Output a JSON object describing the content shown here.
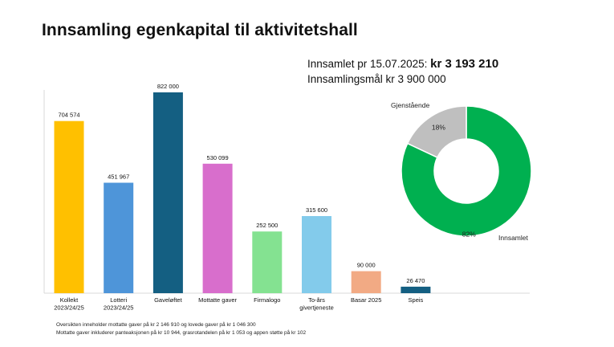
{
  "title": "Innsamling egenkapital til aktivitetshall",
  "summary": {
    "raised_label": "Innsamlet pr 15.07.2025:",
    "raised_amount": "kr 3 193 210",
    "goal_text": "Innsamlingsmål kr 3 900 000"
  },
  "notes": [
    "Oversikten inneholder mottatte gaver på kr 2 146 910 og lovede gaver på kr 1 046 300",
    "Mottatte gaver inkluderer panteaksjonen på kr 10 944, grasrotandelen på kr 1 053 og appen støtte på kr 102"
  ],
  "chart_data": [
    {
      "type": "bar",
      "categories": [
        [
          "Kollekt",
          "2023/24/25"
        ],
        [
          "Lotteri",
          "2023/24/25"
        ],
        [
          "Gaveløftet"
        ],
        [
          "Mottatte gaver"
        ],
        [
          "Firmalogo"
        ],
        [
          "To-års",
          "givertjeneste"
        ],
        [
          "Basar 2025"
        ],
        [
          "Speis"
        ]
      ],
      "values": [
        704574,
        451967,
        822000,
        530099,
        252500,
        315600,
        90000,
        26470
      ],
      "value_labels": [
        "704 574",
        "451 967",
        "822 000",
        "530 099",
        "252 500",
        "315 600",
        "90 000",
        "26 470"
      ],
      "colors": [
        "#FFC000",
        "#4E95D9",
        "#145F82",
        "#D86ECC",
        "#84E291",
        "#83CBEB",
        "#F2AA84",
        "#145F82"
      ],
      "ylim": [
        0,
        822000
      ],
      "title": "",
      "xlabel": "",
      "ylabel": ""
    },
    {
      "type": "pie",
      "style": "donut",
      "labels": [
        "Innsamlet",
        "Gjenstående"
      ],
      "values": [
        82,
        18
      ],
      "percent_labels": [
        "82%",
        "18%"
      ],
      "colors": [
        "#00B050",
        "#BFBFBF"
      ]
    }
  ]
}
